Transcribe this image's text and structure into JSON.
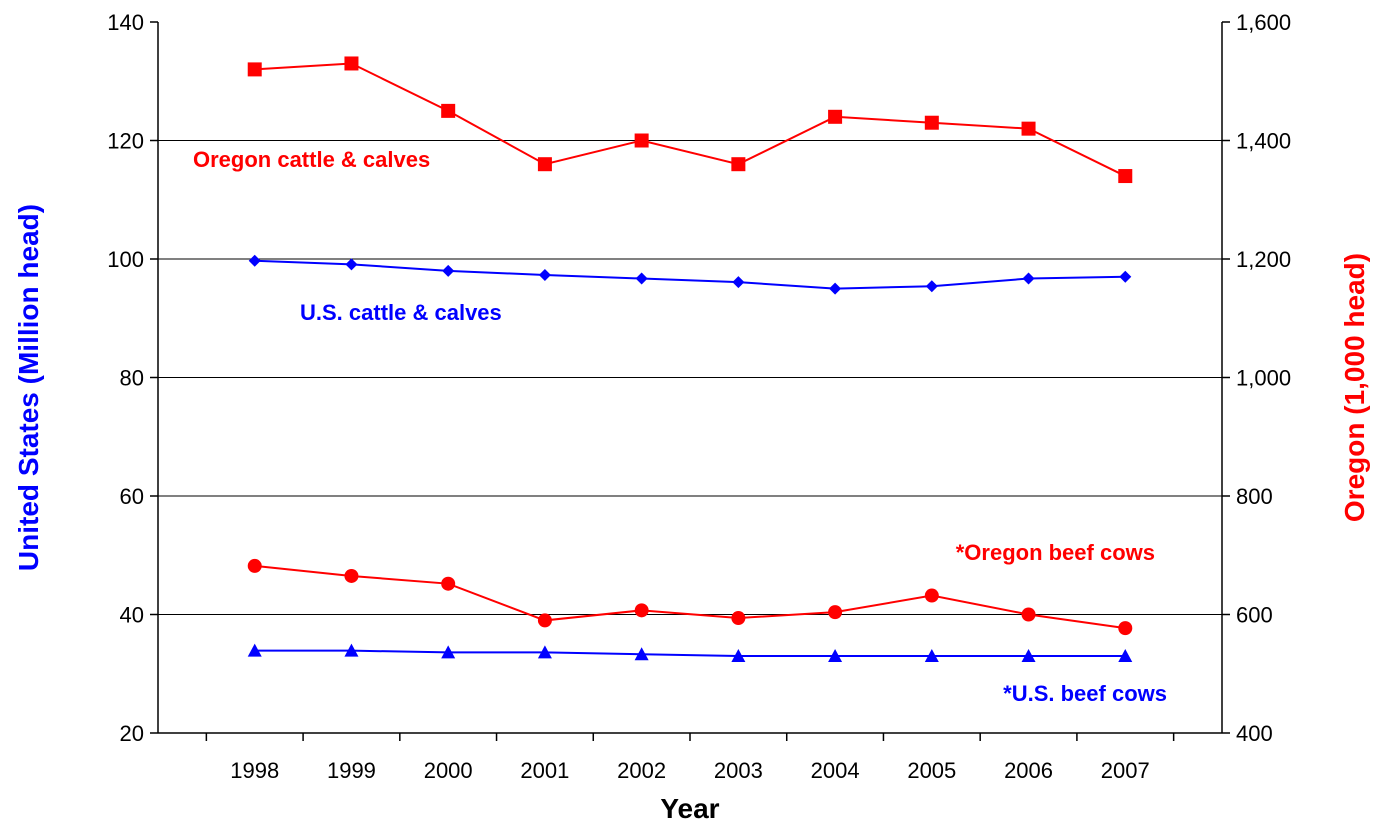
{
  "chart_data": {
    "type": "line",
    "title": "",
    "xlabel": "Year",
    "ylabel_left": "United States (Million head)",
    "ylabel_right": "Oregon (1,000 head)",
    "categories": [
      "1998",
      "1999",
      "2000",
      "2001",
      "2002",
      "2003",
      "2004",
      "2005",
      "2006",
      "2007"
    ],
    "ylim_left": [
      20,
      140
    ],
    "ylim_right": [
      400,
      1600
    ],
    "yticks_left": [
      "20",
      "40",
      "60",
      "80",
      "100",
      "120",
      "140"
    ],
    "yticks_right": [
      "400",
      "600",
      "800",
      "1,000",
      "1,200",
      "1,400",
      "1,600"
    ],
    "grid": true,
    "series": [
      {
        "name": "Oregon cattle & calves",
        "axis": "right",
        "marker": "square",
        "color": "#FF0000",
        "values": [
          1520,
          1530,
          1450,
          1360,
          1400,
          1360,
          1440,
          1430,
          1420,
          1340
        ]
      },
      {
        "name": "U.S. cattle & calves",
        "axis": "left",
        "marker": "diamond",
        "color": "#0000FF",
        "values": [
          99.7,
          99.1,
          98.0,
          97.3,
          96.7,
          96.1,
          95.0,
          95.4,
          96.7,
          97.0
        ]
      },
      {
        "name": "*Oregon beef cows",
        "axis": "right",
        "marker": "circle",
        "color": "#FF0000",
        "values": [
          682,
          665,
          652,
          590,
          607,
          594,
          604,
          632,
          600,
          577
        ]
      },
      {
        "name": "*U.S. beef cows",
        "axis": "left",
        "marker": "triangle",
        "color": "#0000FF",
        "values": [
          33.9,
          33.9,
          33.6,
          33.6,
          33.3,
          33.0,
          33.0,
          33.0,
          33.0,
          33.0
        ]
      }
    ]
  }
}
